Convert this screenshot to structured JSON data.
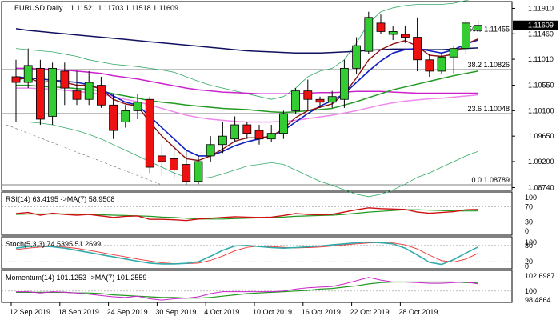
{
  "chart_data": {
    "type": "candlestick",
    "symbol_header": "EURUSD,Daily",
    "ohlc_header": "1.11521 1.11703 1.11518 1.11609",
    "last_price": "1.11609",
    "price_axis_labels": [
      "1.11910",
      "1.11460",
      "1.11010",
      "1.10550",
      "1.10100",
      "1.09650",
      "1.09200",
      "1.08740"
    ],
    "ylim": [
      1.0869,
      1.1203
    ],
    "date_labels": [
      "12 Sep 2019",
      "18 Sep 2019",
      "24 Sep 2019",
      "30 Sep 2019",
      "4 Oct 2019",
      "10 Oct 2019",
      "16 Oct 2019",
      "22 Oct 2019",
      "28 Oct 2019"
    ],
    "fib_levels": [
      {
        "label": "50.0 1.11455",
        "value": 1.11455
      },
      {
        "label": "38.2 1.10826",
        "value": 1.10826
      },
      {
        "label": "23.6 1.10048",
        "value": 1.10048
      },
      {
        "label": "0.0 1.08789",
        "value": 1.08789
      }
    ],
    "candles": [
      {
        "o": 1.107,
        "h": 1.11,
        "l": 1.099,
        "c": 1.106
      },
      {
        "o": 1.106,
        "h": 1.112,
        "l": 1.105,
        "c": 1.109
      },
      {
        "o": 1.1085,
        "h": 1.11,
        "l": 1.0985,
        "c": 1.0995
      },
      {
        "o": 1.1,
        "h": 1.1095,
        "l": 1.0985,
        "c": 1.1085
      },
      {
        "o": 1.108,
        "h": 1.1095,
        "l": 1.102,
        "c": 1.105
      },
      {
        "o": 1.1045,
        "h": 1.108,
        "l": 1.102,
        "c": 1.103
      },
      {
        "o": 1.103,
        "h": 1.108,
        "l": 1.102,
        "c": 1.106
      },
      {
        "o": 1.1055,
        "h": 1.107,
        "l": 1.1015,
        "c": 1.102
      },
      {
        "o": 1.102,
        "h": 1.104,
        "l": 1.096,
        "c": 1.0975
      },
      {
        "o": 1.099,
        "h": 1.102,
        "l": 1.098,
        "c": 1.101
      },
      {
        "o": 1.101,
        "h": 1.104,
        "l": 1.0995,
        "c": 1.1025
      },
      {
        "o": 1.103,
        "h": 1.1035,
        "l": 1.09,
        "c": 1.091
      },
      {
        "o": 1.093,
        "h": 1.095,
        "l": 1.0895,
        "c": 1.092
      },
      {
        "o": 1.0925,
        "h": 1.095,
        "l": 1.089,
        "c": 1.0905
      },
      {
        "o": 1.0915,
        "h": 1.094,
        "l": 1.0879,
        "c": 1.0885
      },
      {
        "o": 1.0885,
        "h": 1.093,
        "l": 1.088,
        "c": 1.092
      },
      {
        "o": 1.093,
        "h": 1.0965,
        "l": 1.092,
        "c": 1.095
      },
      {
        "o": 1.095,
        "h": 1.099,
        "l": 1.0935,
        "c": 1.0965
      },
      {
        "o": 1.096,
        "h": 1.1,
        "l": 1.0955,
        "c": 1.0985
      },
      {
        "o": 1.0985,
        "h": 1.099,
        "l": 1.096,
        "c": 1.097
      },
      {
        "o": 1.0975,
        "h": 1.0985,
        "l": 1.095,
        "c": 1.096
      },
      {
        "o": 1.096,
        "h": 1.0985,
        "l": 1.0955,
        "c": 1.097
      },
      {
        "o": 1.097,
        "h": 1.101,
        "l": 1.096,
        "c": 1.1005
      },
      {
        "o": 1.101,
        "h": 1.105,
        "l": 1.1005,
        "c": 1.1045
      },
      {
        "o": 1.1045,
        "h": 1.1065,
        "l": 1.101,
        "c": 1.103
      },
      {
        "o": 1.103,
        "h": 1.1035,
        "l": 1.1015,
        "c": 1.1025
      },
      {
        "o": 1.1025,
        "h": 1.1045,
        "l": 1.1015,
        "c": 1.1035
      },
      {
        "o": 1.103,
        "h": 1.11,
        "l": 1.1015,
        "c": 1.1085
      },
      {
        "o": 1.1085,
        "h": 1.114,
        "l": 1.1075,
        "c": 1.1125
      },
      {
        "o": 1.1115,
        "h": 1.1185,
        "l": 1.111,
        "c": 1.1175
      },
      {
        "o": 1.1165,
        "h": 1.118,
        "l": 1.1145,
        "c": 1.115
      },
      {
        "o": 1.1145,
        "h": 1.116,
        "l": 1.1135,
        "c": 1.115
      },
      {
        "o": 1.1145,
        "h": 1.116,
        "l": 1.113,
        "c": 1.114
      },
      {
        "o": 1.114,
        "h": 1.1175,
        "l": 1.108,
        "c": 1.11
      },
      {
        "o": 1.11,
        "h": 1.111,
        "l": 1.107,
        "c": 1.108
      },
      {
        "o": 1.108,
        "h": 1.111,
        "l": 1.1075,
        "c": 1.1105
      },
      {
        "o": 1.1105,
        "h": 1.1125,
        "l": 1.1075,
        "c": 1.112
      },
      {
        "o": 1.112,
        "h": 1.117,
        "l": 1.111,
        "c": 1.1165
      },
      {
        "o": 1.1152,
        "h": 1.117,
        "l": 1.1152,
        "c": 1.1161
      }
    ],
    "sma_blue": [
      1.107,
      1.1068,
      1.1066,
      1.1064,
      1.1062,
      1.106,
      1.1056,
      1.1048,
      1.1036,
      1.1025,
      1.102,
      1.1,
      1.098,
      1.096,
      1.094,
      1.093,
      1.093,
      1.0938,
      1.0948,
      1.0955,
      1.096,
      1.0965,
      1.0975,
      1.099,
      1.1005,
      1.1018,
      1.1028,
      1.104,
      1.106,
      1.108,
      1.1098,
      1.1112,
      1.1118,
      1.112,
      1.1116,
      1.1112,
      1.1118,
      1.1128,
      1.1135
    ],
    "ema_red": [
      1.1065,
      1.1068,
      1.106,
      1.1062,
      1.106,
      1.1055,
      1.1055,
      1.1048,
      1.103,
      1.1022,
      1.1018,
      1.099,
      1.0965,
      1.0945,
      1.0925,
      1.0922,
      1.093,
      1.0942,
      1.0956,
      1.0962,
      1.0962,
      1.0965,
      1.0978,
      1.0998,
      1.101,
      1.1016,
      1.1022,
      1.104,
      1.1068,
      1.11,
      1.1118,
      1.1128,
      1.1134,
      1.1124,
      1.1108,
      1.1106,
      1.111,
      1.1128,
      1.1137
    ],
    "ma100_navy": [
      1.1155,
      1.1152,
      1.115,
      1.1148,
      1.1146,
      1.1144,
      1.1142,
      1.114,
      1.1138,
      1.1136,
      1.1134,
      1.1132,
      1.113,
      1.1128,
      1.1126,
      1.1124,
      1.1122,
      1.112,
      1.1118,
      1.1116,
      1.1115,
      1.1114,
      1.1113,
      1.1112,
      1.1112,
      1.1112,
      1.1113,
      1.1114,
      1.1115,
      1.1117,
      1.1118,
      1.1119,
      1.1119,
      1.1119,
      1.1118,
      1.1118,
      1.1119,
      1.112,
      1.1121
    ],
    "ma55_magenta": [
      1.1085,
      1.1085,
      1.1084,
      1.1083,
      1.1082,
      1.108,
      1.1078,
      1.1076,
      1.1072,
      1.1069,
      1.1066,
      1.1062,
      1.1058,
      1.1054,
      1.105,
      1.1047,
      1.1045,
      1.1043,
      1.1042,
      1.1041,
      1.104,
      1.104,
      1.104,
      1.104,
      1.1041,
      1.1042,
      1.1042,
      1.1043,
      1.1044,
      1.1044,
      1.1044,
      1.1043,
      1.1042,
      1.1041,
      1.1041,
      1.1041,
      1.1041,
      1.1041,
      1.1041
    ],
    "ma_green": [
      1.1055,
      1.1055,
      1.1053,
      1.1052,
      1.1051,
      1.1049,
      1.1048,
      1.1045,
      1.104,
      1.1036,
      1.1032,
      1.1028,
      1.1025,
      1.1023,
      1.102,
      1.1018,
      1.1016,
      1.1014,
      1.1013,
      1.1012,
      1.101,
      1.1008,
      1.1007,
      1.1008,
      1.101,
      1.1012,
      1.1014,
      1.102,
      1.1026,
      1.1033,
      1.104,
      1.1047,
      1.1052,
      1.1057,
      1.1062,
      1.1067,
      1.1072,
      1.1076,
      1.108
    ],
    "ma_pink": [
      1.105,
      1.105,
      1.1049,
      1.1048,
      1.1046,
      1.1044,
      1.1042,
      1.1039,
      1.1035,
      1.103,
      1.1026,
      1.102,
      1.1014,
      1.1008,
      1.1002,
      1.0998,
      1.0995,
      1.0993,
      1.0991,
      1.099,
      1.099,
      1.099,
      1.0991,
      1.0993,
      1.0996,
      1.0999,
      1.1002,
      1.1006,
      1.101,
      1.1015,
      1.102,
      1.1024,
      1.1027,
      1.1029,
      1.1031,
      1.1032,
      1.1034,
      1.1036,
      1.1038
    ],
    "bb_upper": [
      1.112,
      1.1118,
      1.1116,
      1.1114,
      1.111,
      1.1106,
      1.11,
      1.1096,
      1.1092,
      1.109,
      1.1088,
      1.1085,
      1.1082,
      1.1078,
      1.107,
      1.1062,
      1.1055,
      1.105,
      1.1045,
      1.104,
      1.1035,
      1.103,
      1.1035,
      1.105,
      1.107,
      1.108,
      1.1085,
      1.11,
      1.113,
      1.1165,
      1.1185,
      1.1192,
      1.1196,
      1.1198,
      1.1198,
      1.1198,
      1.12,
      1.1205,
      1.121
    ],
    "bb_lower": [
      1.099,
      1.099,
      1.0988,
      1.0985,
      1.098,
      1.0975,
      1.0968,
      1.096,
      1.095,
      1.094,
      1.093,
      1.092,
      1.091,
      1.09,
      1.0892,
      1.089,
      1.0892,
      1.0898,
      1.0905,
      1.0912,
      1.0915,
      1.0918,
      1.0915,
      1.0905,
      1.0895,
      1.0885,
      1.0878,
      1.087,
      1.0862,
      1.0858,
      1.0862,
      1.087,
      1.088,
      1.0892,
      1.09,
      1.091,
      1.092,
      1.093,
      1.0938
    ],
    "rsi": {
      "label": "RSI(14) 63.4195 ->MA(7) 58.9508",
      "axis_labels": [
        "100",
        "70",
        "30",
        "0"
      ],
      "values": [
        52,
        55,
        48,
        53,
        50,
        48,
        50,
        46,
        42,
        45,
        46,
        37,
        37,
        36,
        34,
        38,
        40,
        42,
        44,
        43,
        42,
        43,
        47,
        52,
        50,
        49,
        50,
        56,
        62,
        67,
        65,
        64,
        63,
        56,
        53,
        55,
        57,
        62,
        63
      ],
      "ma_values": [
        50,
        51,
        51,
        51,
        51,
        51,
        50,
        49,
        48,
        47,
        46,
        45,
        43,
        42,
        40,
        38,
        38,
        38,
        39,
        40,
        41,
        42,
        43,
        45,
        46,
        47,
        48,
        50,
        53,
        56,
        58,
        60,
        62,
        62,
        61,
        60,
        59,
        59,
        59
      ]
    },
    "stoch": {
      "label": "Stoch(5,3,3) 74.5395 51.2699",
      "axis_labels": [
        "100",
        "80",
        "20",
        "0"
      ],
      "k": [
        70,
        76,
        78,
        75,
        70,
        62,
        54,
        46,
        38,
        30,
        22,
        15,
        12,
        12,
        14,
        20,
        40,
        62,
        78,
        80,
        76,
        72,
        70,
        72,
        75,
        78,
        82,
        86,
        90,
        92,
        90,
        86,
        70,
        45,
        18,
        10,
        28,
        52,
        74
      ],
      "d": [
        65,
        70,
        74,
        76,
        74,
        69,
        62,
        54,
        46,
        38,
        30,
        23,
        16,
        13,
        13,
        15,
        25,
        41,
        60,
        73,
        78,
        76,
        73,
        71,
        72,
        74,
        78,
        82,
        86,
        89,
        90,
        89,
        82,
        67,
        44,
        24,
        19,
        30,
        51
      ]
    },
    "momentum": {
      "label": "Momentum(14) 101.1253 ->MA(7) 101.2559",
      "axis_labels": [
        "102.6987",
        "100",
        "98.4864"
      ],
      "values": [
        99.9,
        99.9,
        99.7,
        99.9,
        99.8,
        99.7,
        99.5,
        99.3,
        99.1,
        99.0,
        99.2,
        98.8,
        98.6,
        98.8,
        98.9,
        99.1,
        99.6,
        99.9,
        99.9,
        99.9,
        99.9,
        99.9,
        100.0,
        100.3,
        100.5,
        100.6,
        100.7,
        101.1,
        101.6,
        102.1,
        101.7,
        101.4,
        101.4,
        101.3,
        101.2,
        101.2,
        101.3,
        101.4,
        101.1
      ],
      "ma_values": [
        99.8,
        99.8,
        99.8,
        99.8,
        99.8,
        99.7,
        99.7,
        99.6,
        99.4,
        99.3,
        99.2,
        99.1,
        99.0,
        99.0,
        98.9,
        98.9,
        99.0,
        99.2,
        99.4,
        99.6,
        99.7,
        99.8,
        99.9,
        100.0,
        100.1,
        100.3,
        100.4,
        100.6,
        100.8,
        101.1,
        101.3,
        101.4,
        101.4,
        101.4,
        101.4,
        101.4,
        101.4,
        101.3,
        101.3
      ]
    }
  },
  "colors": {
    "bull": "#33cc33",
    "bear": "#ee1111",
    "sma_blue": "#1020c0",
    "ema_red": "#8b1010",
    "ma100_navy": "#101060",
    "ma55_magenta": "#cc22cc",
    "ma_green": "#229922",
    "ma_pink": "#ee88ee",
    "bb": "#33aa66",
    "stoch_k": "#33aaaa",
    "stoch_d": "#ee3333"
  }
}
